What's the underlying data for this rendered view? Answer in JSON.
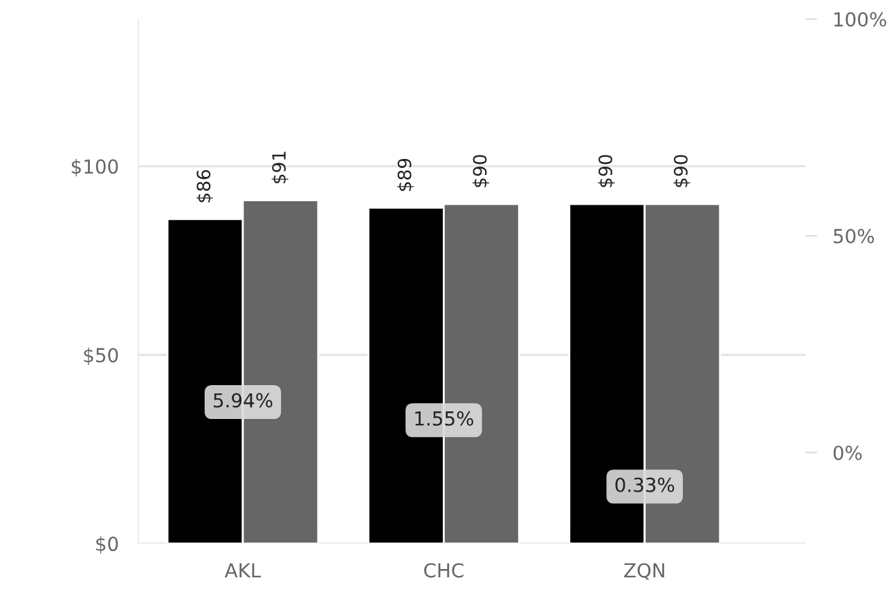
{
  "chart_data": {
    "type": "bar",
    "categories": [
      "AKL",
      "CHC",
      "ZQN"
    ],
    "series": [
      {
        "color": "#000000",
        "values": [
          86,
          89,
          90
        ],
        "value_labels": [
          "$86",
          "$89",
          "$90"
        ]
      },
      {
        "color": "#666666",
        "values": [
          91,
          90,
          90
        ],
        "value_labels": [
          "$91",
          "$90",
          "$90"
        ]
      }
    ],
    "ylim": [
      0,
      139
    ],
    "yticks": [
      {
        "value": 0,
        "label": "$0"
      },
      {
        "value": 50,
        "label": "$50"
      },
      {
        "value": 100,
        "label": "$100"
      }
    ],
    "y2lim": [
      -21,
      100
    ],
    "y2ticks": [
      {
        "value": 0,
        "label": "0%"
      },
      {
        "value": 50,
        "label": "50%"
      },
      {
        "value": 100,
        "label": "100%"
      }
    ],
    "grid": "y",
    "annotations": [
      {
        "text": "5.94%",
        "x": "AKL",
        "y": 37.5
      },
      {
        "text": "1.55%",
        "x": "CHC",
        "y": 32.7
      },
      {
        "text": "0.33%",
        "x": "ZQN",
        "y": 15.1
      }
    ]
  }
}
